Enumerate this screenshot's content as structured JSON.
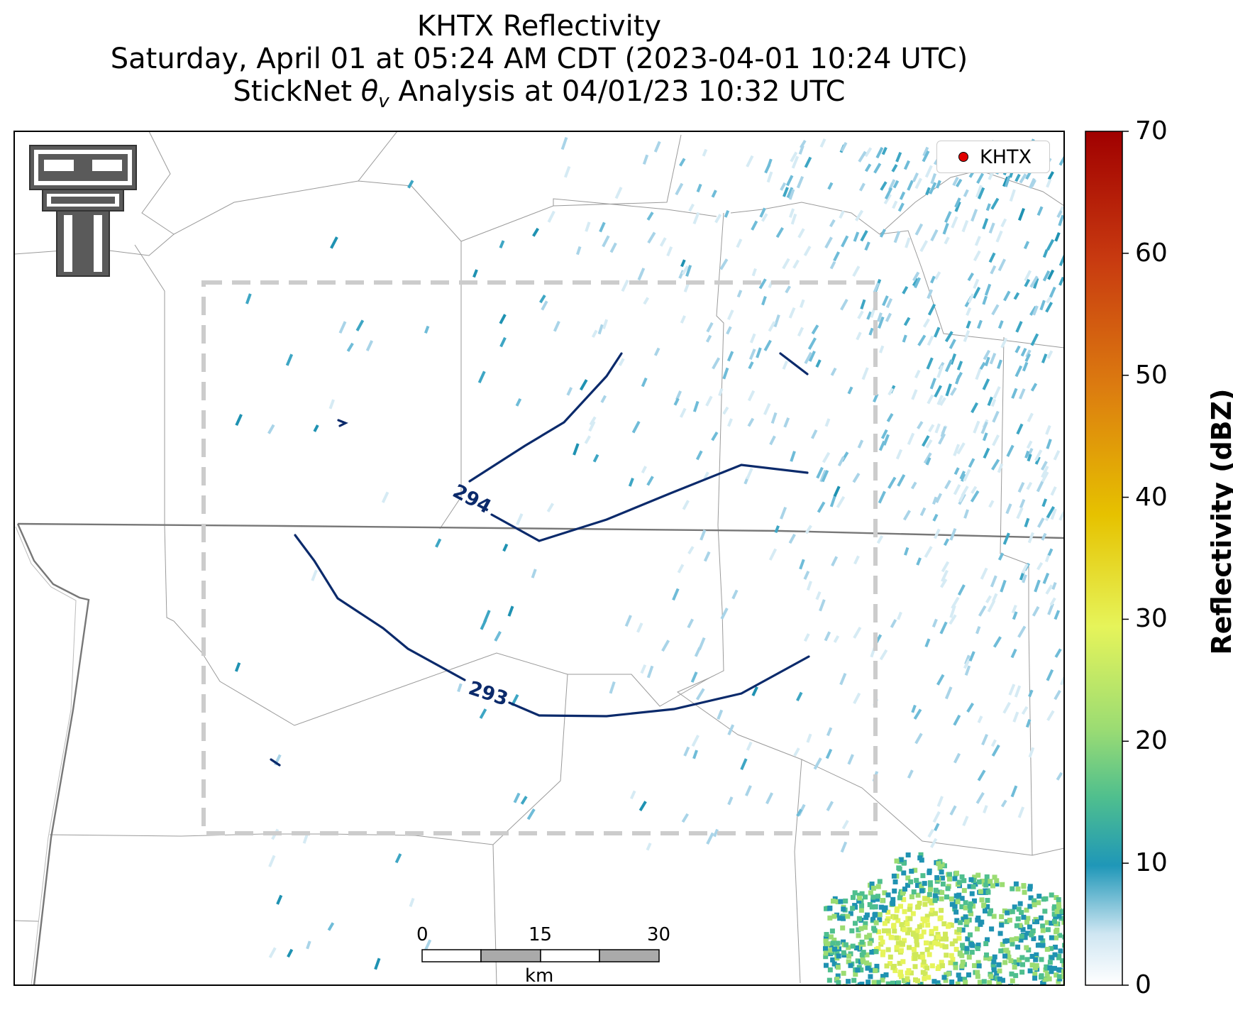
{
  "title": {
    "line1": "KHTX Reflectivity",
    "line2": "Saturday, April 01 at 05:24 AM CDT (2023-04-01 10:24 UTC)",
    "line3_prefix": "StickNet ",
    "line3_symbol": "θ",
    "line3_subscript": "v",
    "line3_suffix": " Analysis at 04/01/23 10:32 UTC"
  },
  "legend": {
    "marker_color": "#e00000",
    "label": "KHTX"
  },
  "colorbar": {
    "label": "Reflectivity (dBZ)",
    "ticks": [
      "0",
      "10",
      "20",
      "30",
      "40",
      "50",
      "60",
      "70"
    ],
    "range": [
      0,
      70
    ]
  },
  "contours": [
    {
      "label": "294",
      "color": "#0b2a6b"
    },
    {
      "label": "293",
      "color": "#0b2a6b"
    }
  ],
  "scalebar": {
    "ticks": [
      "0",
      "15",
      "30"
    ],
    "unit": "km"
  },
  "logo": {
    "icon": "texas-tech-double-t-logo-icon"
  },
  "colors": {
    "contour": "#0b2a6b",
    "analysis_box": "#cccccc",
    "county_border": "#9a9a9a",
    "state_border": "#777777"
  }
}
